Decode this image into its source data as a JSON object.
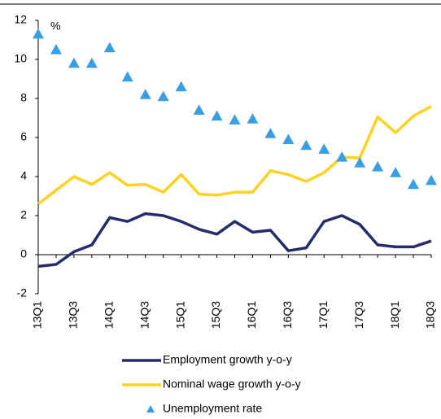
{
  "chart_data": {
    "type": "line",
    "y_unit": "%",
    "categories": [
      "13Q1",
      null,
      "13Q3",
      null,
      "14Q1",
      null,
      "14Q3",
      null,
      "15Q1",
      null,
      "15Q3",
      null,
      "16Q1",
      null,
      "16Q3",
      null,
      "17Q1",
      null,
      "17Q3",
      null,
      "18Q1",
      null,
      "18Q3"
    ],
    "series": [
      {
        "name": "Employment growth y-o-y",
        "color": "#262b6b",
        "mode": "line",
        "values": [
          -0.6,
          -0.5,
          0.15,
          0.5,
          1.9,
          1.7,
          2.1,
          2.0,
          1.7,
          1.3,
          1.05,
          1.7,
          1.15,
          1.25,
          0.2,
          0.35,
          1.7,
          2.0,
          1.55,
          0.5,
          0.4,
          0.4,
          0.7
        ]
      },
      {
        "name": "Nominal wage growth y-o-y",
        "color": "#ffd21f",
        "mode": "line",
        "values": [
          2.6,
          3.3,
          4.0,
          3.6,
          4.2,
          3.55,
          3.6,
          3.2,
          4.1,
          3.1,
          3.05,
          3.2,
          3.2,
          4.3,
          4.1,
          3.75,
          4.2,
          5.0,
          4.95,
          7.05,
          6.25,
          7.1,
          7.6
        ]
      },
      {
        "name": "Unemployment rate",
        "color": "#3a9ee4",
        "mode": "markers",
        "values": [
          11.3,
          10.5,
          9.8,
          9.8,
          10.6,
          9.1,
          8.2,
          8.1,
          8.6,
          7.4,
          7.1,
          6.9,
          6.95,
          6.2,
          5.9,
          5.6,
          5.4,
          5.0,
          4.7,
          4.5,
          4.2,
          3.6,
          3.8
        ]
      }
    ],
    "ylim": [
      -2,
      12
    ],
    "yticks": [
      -2,
      0,
      2,
      4,
      6,
      8,
      10,
      12
    ],
    "grid": false
  }
}
